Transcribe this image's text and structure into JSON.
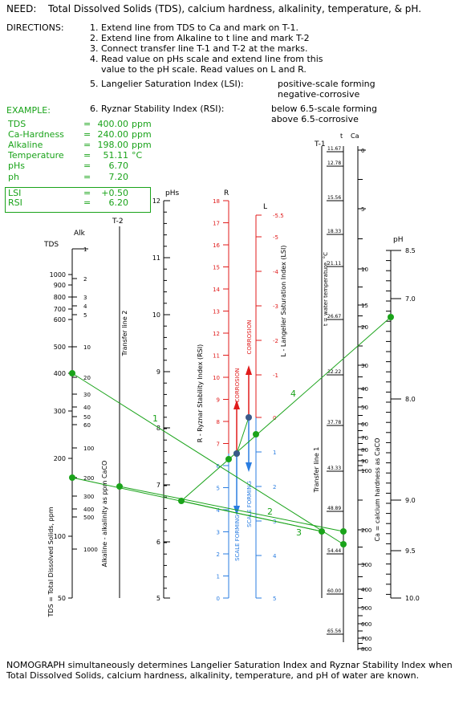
{
  "header": {
    "need_label": "NEED:",
    "need_text": "Total Dissolved Solids (TDS), calcium hardness, alkalinity, temperature, & pH.",
    "directions_label": "DIRECTIONS:",
    "steps": [
      "1. Extend line from TDS to Ca and mark on T-1.",
      "2. Extend line from Alkaline to t line and mark T-2",
      "3. Connect transfer line T-1 and T-2 at the marks.",
      "4. Read value on pHs scale and extend line from this",
      "    value to the pH scale. Read values on L and R.",
      "5. Langelier Saturation Index (LSI):",
      "6. Ryznar Stability Index (RSI):"
    ],
    "lsi_notes": [
      "positive-scale forming",
      "negative-corrosive"
    ],
    "rsi_notes": [
      "below 6.5-scale forming",
      "above 6.5-corrosive"
    ]
  },
  "example": {
    "title": "EXAMPLE:",
    "rows": [
      {
        "label": "TDS",
        "eq": "=",
        "value": "400.00",
        "unit": "ppm"
      },
      {
        "label": "Ca-Hardness",
        "eq": "=",
        "value": "240.00",
        "unit": "ppm"
      },
      {
        "label": "Alkaline",
        "eq": "=",
        "value": "198.00",
        "unit": "ppm"
      },
      {
        "label": "Temperature",
        "eq": "=",
        "value": "51.11",
        "unit": "°C"
      },
      {
        "label": "pHs",
        "eq": "=",
        "value": "6.70",
        "unit": ""
      },
      {
        "label": "ph",
        "eq": "=",
        "value": "7.20",
        "unit": ""
      },
      {
        "label": "LSI",
        "eq": "=",
        "value": "+0.50",
        "unit": ""
      },
      {
        "label": "RSI",
        "eq": "=",
        "value": "6.20",
        "unit": ""
      }
    ]
  },
  "scales": {
    "tds": {
      "title": "TDS",
      "axis_label": "TDS = Total Dissolved Solids, ppm",
      "ticks": [
        "1000",
        "900",
        "800",
        "700",
        "600",
        "500",
        "400",
        "300",
        "200",
        "100",
        "50"
      ]
    },
    "alk": {
      "title": "Alk",
      "axis_label": "Alkaline - alkalinity as ppm CaCO",
      "ticks": [
        "1",
        "2",
        "3",
        "4",
        "5",
        "10",
        "20",
        "30",
        "40",
        "50",
        "60",
        "100",
        "200",
        "300",
        "400",
        "500",
        "1000"
      ]
    },
    "t2": {
      "title": "T-2",
      "axis_label": "Transfer line 2"
    },
    "phs": {
      "title": "pHs",
      "ticks": [
        "12",
        "11",
        "10",
        "9",
        "8",
        "7",
        "6",
        "5"
      ]
    },
    "r": {
      "title": "R",
      "axis_label": "R - Ryznar Stability Index (RSI)",
      "ticks": [
        "18",
        "17",
        "16",
        "15",
        "14",
        "13",
        "12",
        "11",
        "10",
        "9",
        "8",
        "7",
        "6",
        "5",
        "4",
        "3",
        "2",
        "1",
        "0"
      ]
    },
    "l": {
      "title": "L",
      "axis_label": "L - Langelier Saturation Index (LSI)",
      "ticks": [
        "-5.5",
        "-5",
        "-4",
        "-3",
        "-2",
        "-1",
        "0",
        "1",
        "2",
        "3",
        "4",
        "5"
      ]
    },
    "t1": {
      "title": "T-1",
      "axis_label": "Transfer line 1"
    },
    "temp": {
      "title": "t",
      "axis_label": "t = water temperature, °C",
      "ticks": [
        "11.67",
        "12.78",
        "15.56",
        "18.33",
        "21.11",
        "26.67",
        "32.22",
        "37.78",
        "43.33",
        "48.89",
        "54.44",
        "60.00",
        "65.56"
      ]
    },
    "ca": {
      "title": "Ca",
      "axis_label": "Ca = calcium hardness as CaCO",
      "ticks": [
        "0",
        "5",
        "10",
        "15",
        "20",
        "30",
        "40",
        "50",
        "60",
        "70",
        "80",
        "90",
        "100",
        "200",
        "300",
        "400",
        "500",
        "600",
        "700",
        "800"
      ]
    },
    "ph": {
      "title": "pH",
      "ticks": [
        "8.5",
        "7.0",
        "8.0",
        "9.0",
        "9.5",
        "10.0"
      ]
    }
  },
  "annotations": {
    "corrosion": "CORROSION",
    "scale_forming": "SCALE FORMING",
    "line_numbers": [
      "1",
      "2",
      "3",
      "4"
    ]
  },
  "colors": {
    "green": "#1aa31a",
    "red": "#e01b1b",
    "blue": "#2a7de1",
    "black": "#000000"
  },
  "footer": "NOMOGRAPH simultaneously determines Langelier Saturation Index and Ryznar Stability Index when Total Dissolved Solids, calcium hardness, alkalinity, temperature, and pH of water are known."
}
